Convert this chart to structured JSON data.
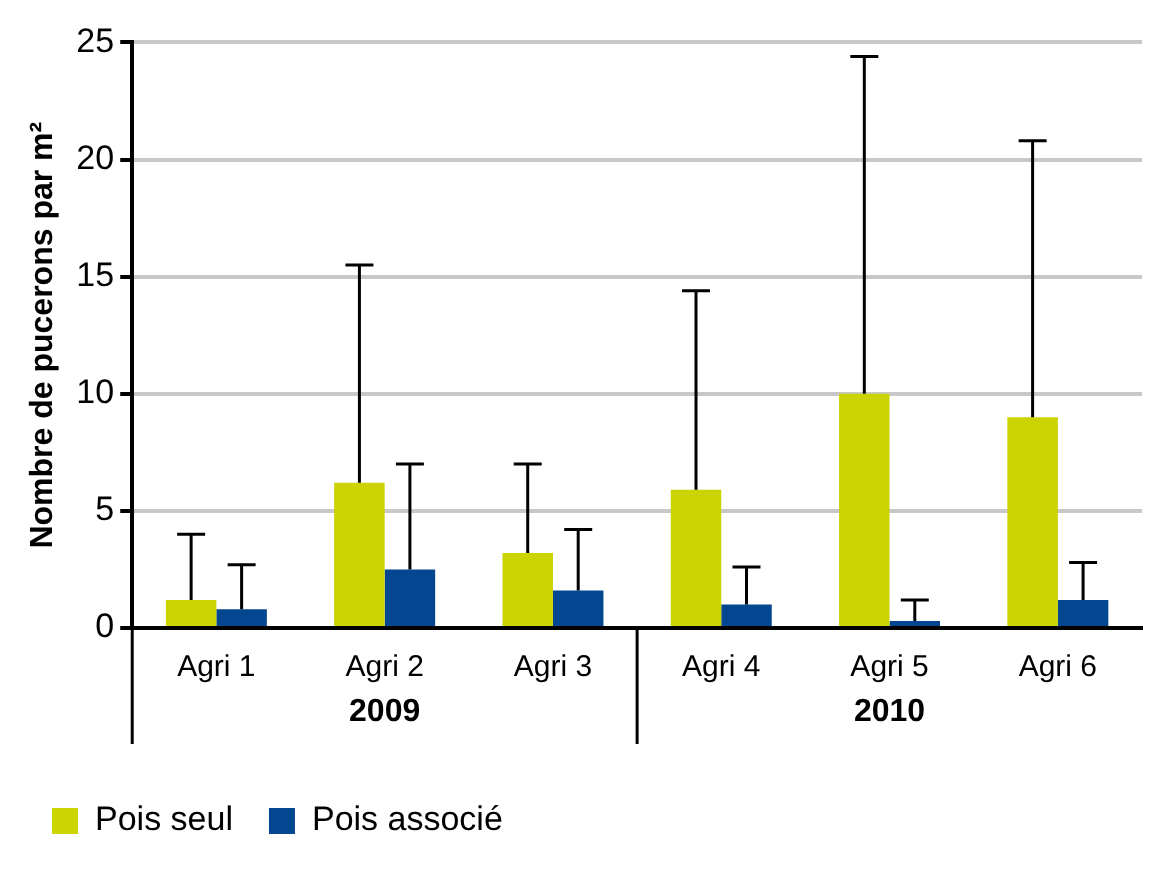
{
  "chart_data": {
    "type": "bar",
    "ylabel": "Nombre de pucerons par m²",
    "categories": [
      "Agri 1",
      "Agri 2",
      "Agri 3",
      "Agri 4",
      "Agri 5",
      "Agri 6"
    ],
    "series": [
      {
        "name": "Pois seul",
        "color": "#cbd300",
        "values": [
          1.2,
          6.2,
          3.2,
          5.9,
          10.0,
          9.0
        ],
        "errors": [
          [
            1.2,
            4.0
          ],
          [
            6.2,
            15.5
          ],
          [
            3.2,
            7.0
          ],
          [
            5.9,
            14.4
          ],
          [
            10.0,
            24.4
          ],
          [
            9.0,
            20.8
          ]
        ]
      },
      {
        "name": "Pois associé",
        "color": "#02478f",
        "values": [
          0.8,
          2.5,
          1.6,
          1.0,
          0.3,
          1.2
        ],
        "errors": [
          [
            0.8,
            2.7
          ],
          [
            2.5,
            7.0
          ],
          [
            1.6,
            4.2
          ],
          [
            1.0,
            2.6
          ],
          [
            0.3,
            1.2
          ],
          [
            1.2,
            2.8
          ]
        ]
      }
    ],
    "annotations": [
      "2009",
      "2010"
    ],
    "ylim": [
      0,
      25
    ],
    "yticks": [
      0,
      5,
      10,
      15,
      20,
      25
    ],
    "grid": "y",
    "legend": "bottom left"
  }
}
